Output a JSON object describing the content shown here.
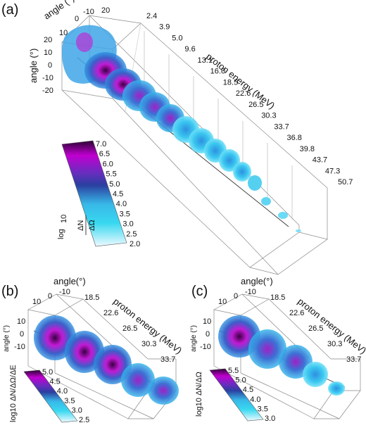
{
  "panels": {
    "a": {
      "tag": "(a)",
      "angle_top_label": "angle (°)",
      "angle_top_ticks": [
        "10",
        "0",
        "-10",
        "20"
      ],
      "angle_left_label": "angle (°)",
      "angle_left_ticks": [
        "20",
        "10",
        "0",
        "-10",
        "-20"
      ],
      "energy_label": "proton energy (MeV)",
      "energy_ticks": [
        {
          "text": "2.4",
          "red": false
        },
        {
          "text": "3.9",
          "red": false
        },
        {
          "text": "5.0",
          "red": false
        },
        {
          "text": "9.6",
          "red": false
        },
        {
          "text": "13.1",
          "red": false
        },
        {
          "text": "16.0",
          "red": false
        },
        {
          "text": "18.5",
          "red": true
        },
        {
          "text": "22.6",
          "red": true
        },
        {
          "text": "26.5",
          "red": true
        },
        {
          "text": "30.3",
          "red": true
        },
        {
          "text": "33.7",
          "red": true
        },
        {
          "text": "36.8",
          "red": false
        },
        {
          "text": "39.8",
          "red": false
        },
        {
          "text": "43.7",
          "red": false
        },
        {
          "text": "47.3",
          "red": false
        },
        {
          "text": "50.7",
          "red": false
        }
      ],
      "colorbar_ticks": [
        "7.0",
        "6.5",
        "6.0",
        "5.5",
        "5.0",
        "4.5",
        "4.0",
        "3.5",
        "3.0",
        "2.5",
        "2.0"
      ],
      "colorbar_log": "log",
      "colorbar_sub": "10",
      "colorbar_num": "ΔN",
      "colorbar_den": "ΔΩ"
    },
    "b": {
      "tag": "(b)",
      "angle_top_label": "angle(°)",
      "angle_top_ticks": [
        "10",
        "0",
        "-10"
      ],
      "angle_left_label": "angle (°)",
      "angle_left_ticks": [
        "10",
        "0",
        "-10"
      ],
      "energy_label": "proton energy (MeV)",
      "energy_ticks": [
        "18.5",
        "22.6",
        "26.5",
        "30.3",
        "33.7"
      ],
      "colorbar_ticks": [
        "5.0",
        "4.5",
        "4.0",
        "3.5",
        "3.0",
        "2.5"
      ],
      "colorbar_text": "log10 ΔN/ΔΩ/ΔE"
    },
    "c": {
      "tag": "(c)",
      "angle_top_label": "angle(°)",
      "angle_top_ticks": [
        "10",
        "0",
        "-10"
      ],
      "angle_left_label": "angle (°)",
      "angle_left_ticks": [
        "10",
        "0",
        "-10"
      ],
      "energy_label": "proton energy (MeV)",
      "energy_ticks": [
        "18.5",
        "22.6",
        "26.5",
        "30.3",
        "33.7"
      ],
      "colorbar_ticks": [
        "5.5",
        "5.0",
        "4.5",
        "4.0",
        "3.5",
        "3.0"
      ],
      "colorbar_text": "log10 ΔN/ΔΩ"
    }
  },
  "colors": {
    "red_label": "#dd2211",
    "cmap_high": "#2b0033",
    "cmap_magenta": "#c000d0",
    "cmap_blue": "#2a3fa0",
    "cmap_cyan": "#38d8f0",
    "cmap_low": "#e8f8ff"
  }
}
